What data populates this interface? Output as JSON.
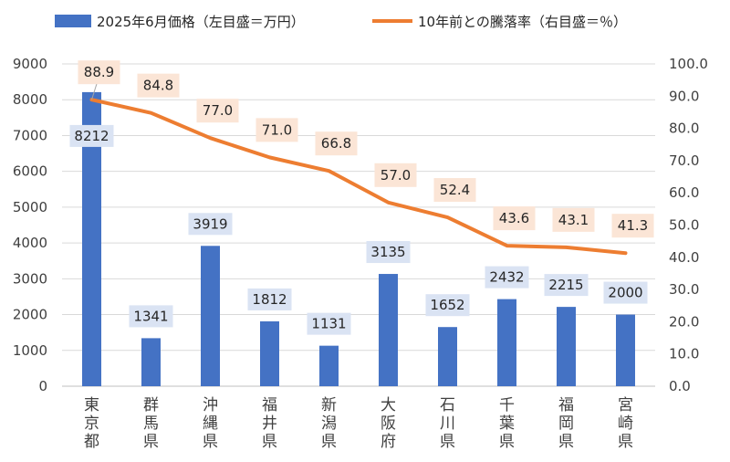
{
  "chart_data": {
    "type": "bar+line",
    "legend": {
      "bar_label": "2025年6月価格（左目盛＝万円）",
      "line_label": "10年前との騰落率（右目盛＝％）",
      "placement": "top"
    },
    "categories": [
      "東京都",
      "群馬県",
      "沖縄県",
      "福井県",
      "新潟県",
      "大阪府",
      "石川県",
      "千葉県",
      "福岡県",
      "宮崎県"
    ],
    "bar_series": {
      "name": "2025年6月価格（左目盛＝万円）",
      "values": [
        8212,
        1341,
        3919,
        1812,
        1131,
        3135,
        1652,
        2432,
        2215,
        2000
      ],
      "labels": [
        "8212",
        "1341",
        "3919",
        "1812",
        "1131",
        "3135",
        "1652",
        "2432",
        "2215",
        "2000"
      ]
    },
    "line_series": {
      "name": "10年前との騰落率（右目盛＝％）",
      "values": [
        88.9,
        84.8,
        77.0,
        71.0,
        66.8,
        57.0,
        52.4,
        43.6,
        43.1,
        41.3
      ],
      "labels": [
        "88.9",
        "84.8",
        "77.0",
        "71.0",
        "66.8",
        "57.0",
        "52.4",
        "43.6",
        "43.1",
        "41.3"
      ]
    },
    "y_left": {
      "min": 0,
      "max": 9000,
      "ticks": [
        "0",
        "1000",
        "2000",
        "3000",
        "4000",
        "5000",
        "6000",
        "7000",
        "8000",
        "9000"
      ]
    },
    "y_right": {
      "min": 0,
      "max": 100,
      "ticks": [
        "0.0",
        "10.0",
        "20.0",
        "30.0",
        "40.0",
        "50.0",
        "60.0",
        "70.0",
        "80.0",
        "90.0",
        "100.0"
      ]
    },
    "grid": true,
    "colors": {
      "bar": "#4472c4",
      "line": "#ed7d31",
      "bar_label_bg": "#dae3f3",
      "line_label_bg": "#fbe5d6",
      "grid": "#d9d9d9"
    }
  }
}
